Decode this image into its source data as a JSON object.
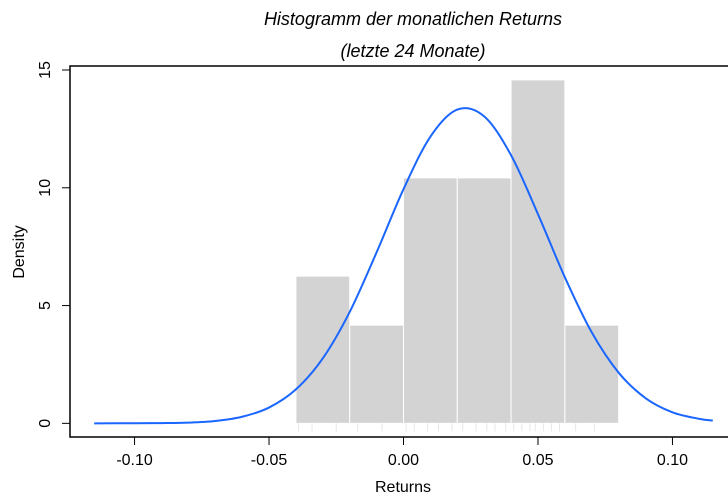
{
  "chart_data": {
    "type": "histogram",
    "title": "Histogramm der monatlichen Returns",
    "subtitle": "(letzte 24 Monate)",
    "x_label": "Returns",
    "y_label": "Density",
    "bins": [
      -0.04,
      -0.02,
      0.0,
      0.02,
      0.04,
      0.06,
      0.08
    ],
    "values": [
      6.25,
      4.17,
      10.42,
      10.42,
      14.58,
      4.17
    ],
    "color": "#d3d3d3",
    "density": {
      "color": "#1a66ff",
      "x": [
        -0.115,
        -0.1,
        -0.09,
        -0.08,
        -0.07,
        -0.06,
        -0.05,
        -0.04,
        -0.03,
        -0.02,
        -0.01,
        0.0,
        0.01,
        0.02,
        0.03,
        0.04,
        0.05,
        0.06,
        0.07,
        0.08,
        0.09,
        0.1,
        0.11,
        0.115
      ],
      "values": [
        0.0,
        0.003,
        0.01,
        0.03,
        0.1,
        0.28,
        0.67,
        1.44,
        2.76,
        4.73,
        7.26,
        9.94,
        12.17,
        13.32,
        13.03,
        11.38,
        8.88,
        6.2,
        3.86,
        2.15,
        1.07,
        0.47,
        0.19,
        0.12
      ]
    },
    "rug": [
      -0.039,
      -0.034,
      -0.025,
      -0.017,
      -0.008,
      0.001,
      0.004,
      0.009,
      0.013,
      0.018,
      0.022,
      0.027,
      0.031,
      0.034,
      0.038,
      0.041,
      0.044,
      0.047,
      0.049,
      0.052,
      0.055,
      0.058,
      0.064,
      0.071
    ],
    "xlim": [
      -0.124,
      0.124
    ],
    "ylim": [
      -0.58,
      15.17
    ],
    "xticks": [
      {
        "value": -0.1,
        "label": "-0.10"
      },
      {
        "value": -0.05,
        "label": "-0.05"
      },
      {
        "value": 0,
        "label": "0.00"
      },
      {
        "value": 0.05,
        "label": "0.05"
      },
      {
        "value": 0.1,
        "label": "0.10"
      }
    ],
    "yticks": [
      0,
      5,
      10,
      15
    ]
  }
}
